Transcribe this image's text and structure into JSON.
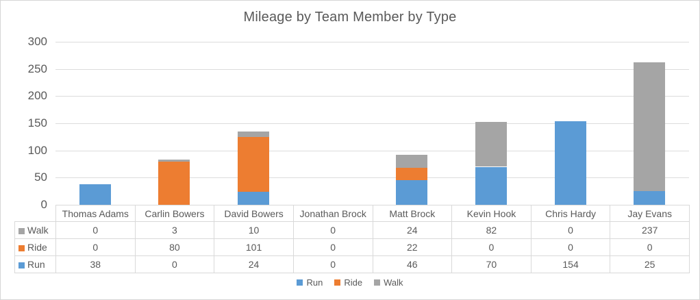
{
  "title": "Mileage by Team Member by Type",
  "chart_data": {
    "type": "bar",
    "stacked": true,
    "title": "Mileage by Team Member by Type",
    "categories": [
      "Thomas Adams",
      "Carlin Bowers",
      "David Bowers",
      "Jonathan Brock",
      "Matt Brock",
      "Kevin Hook",
      "Chris Hardy",
      "Jay Evans"
    ],
    "series": [
      {
        "name": "Run",
        "color": "#5B9BD5",
        "values": [
          38,
          0,
          24,
          0,
          46,
          70,
          154,
          25
        ]
      },
      {
        "name": "Ride",
        "color": "#ED7D31",
        "values": [
          0,
          80,
          101,
          0,
          22,
          0,
          0,
          0
        ]
      },
      {
        "name": "Walk",
        "color": "#A5A5A5",
        "values": [
          0,
          3,
          10,
          0,
          24,
          82,
          0,
          237
        ]
      }
    ],
    "totals": [
      38,
      83,
      135,
      0,
      92,
      152,
      154,
      262
    ],
    "xlabel": "",
    "ylabel": "",
    "ylim": [
      0,
      300
    ],
    "yticks": [
      0,
      50,
      100,
      150,
      200,
      250,
      300
    ],
    "grid": true,
    "legend_position": "bottom",
    "legend_order": [
      "Run",
      "Ride",
      "Walk"
    ],
    "data_table": {
      "visible": true,
      "row_order": [
        "Walk",
        "Ride",
        "Run"
      ]
    }
  },
  "colors": {
    "run": "#5B9BD5",
    "ride": "#ED7D31",
    "walk": "#A5A5A5",
    "text": "#595959",
    "gridline": "#DCDCDC",
    "table_border": "#D9D9D9"
  }
}
